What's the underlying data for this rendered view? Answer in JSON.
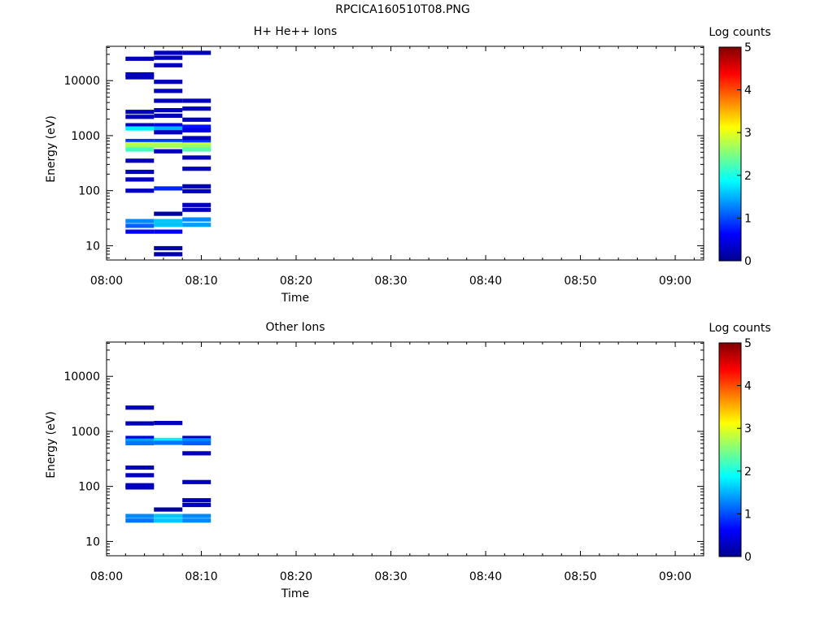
{
  "figure_title": "RPCICA160510T08.PNG",
  "chart_data": [
    {
      "type": "heatmap",
      "title": "H+ He++ Ions",
      "xlabel": "Time",
      "ylabel": "Energy (eV)",
      "colorbar_label": "Log counts",
      "y_scale": "log",
      "x_range": [
        "08:00",
        "09:03"
      ],
      "y_range": [
        5.5,
        42000
      ],
      "x_ticks": [
        "08:00",
        "08:10",
        "08:20",
        "08:30",
        "08:40",
        "08:50",
        "09:00"
      ],
      "y_ticks": [
        10,
        100,
        1000,
        10000
      ],
      "y_tick_labels": [
        "10",
        "100",
        "1000",
        "10000"
      ],
      "colorbar_range": [
        0,
        5
      ],
      "colorbar_ticks": [
        "0",
        "1",
        "2",
        "3",
        "4",
        "5"
      ],
      "columns": [
        {
          "t0": "08:02",
          "t1": "08:05",
          "bins": [
            {
              "e": 25000,
              "v": 0.3
            },
            {
              "e": 13000,
              "v": 0.3
            },
            {
              "e": 11500,
              "v": 0.3
            },
            {
              "e": 2700,
              "v": 0.3
            },
            {
              "e": 2200,
              "v": 0.3
            },
            {
              "e": 1550,
              "v": 0.3
            },
            {
              "e": 1350,
              "v": 1.8
            },
            {
              "e": 800,
              "v": 0.9
            },
            {
              "e": 700,
              "v": 2.9
            },
            {
              "e": 650,
              "v": 2.7
            },
            {
              "e": 560,
              "v": 2.2
            },
            {
              "e": 350,
              "v": 0.3
            },
            {
              "e": 220,
              "v": 0.3
            },
            {
              "e": 160,
              "v": 0.3
            },
            {
              "e": 100,
              "v": 0.3
            },
            {
              "e": 28,
              "v": 1.3
            },
            {
              "e": 23,
              "v": 1.1
            },
            {
              "e": 18,
              "v": 0.6
            }
          ]
        },
        {
          "t0": "08:05",
          "t1": "08:08",
          "bins": [
            {
              "e": 32000,
              "v": 0.3
            },
            {
              "e": 26000,
              "v": 0.3
            },
            {
              "e": 19000,
              "v": 0.3
            },
            {
              "e": 9500,
              "v": 0.3
            },
            {
              "e": 6500,
              "v": 0.3
            },
            {
              "e": 4300,
              "v": 0.3
            },
            {
              "e": 2900,
              "v": 0.3
            },
            {
              "e": 2300,
              "v": 0.3
            },
            {
              "e": 1550,
              "v": 0.5
            },
            {
              "e": 1350,
              "v": 1.5
            },
            {
              "e": 1150,
              "v": 0.3
            },
            {
              "e": 800,
              "v": 0.9
            },
            {
              "e": 700,
              "v": 2.8
            },
            {
              "e": 650,
              "v": 2.7
            },
            {
              "e": 520,
              "v": 0.3
            },
            {
              "e": 110,
              "v": 0.8
            },
            {
              "e": 38,
              "v": 0.2
            },
            {
              "e": 28,
              "v": 1.6
            },
            {
              "e": 24,
              "v": 1.6
            },
            {
              "e": 18,
              "v": 0.6
            },
            {
              "e": 9,
              "v": 0.2
            },
            {
              "e": 7,
              "v": 0.2
            }
          ]
        },
        {
          "t0": "08:08",
          "t1": "08:11",
          "bins": [
            {
              "e": 32000,
              "v": 0.3
            },
            {
              "e": 4300,
              "v": 0.3
            },
            {
              "e": 3100,
              "v": 0.3
            },
            {
              "e": 1950,
              "v": 0.3
            },
            {
              "e": 1450,
              "v": 0.7
            },
            {
              "e": 1250,
              "v": 0.5
            },
            {
              "e": 900,
              "v": 0.3
            },
            {
              "e": 760,
              "v": 0.9
            },
            {
              "e": 690,
              "v": 2.9
            },
            {
              "e": 630,
              "v": 2.6
            },
            {
              "e": 560,
              "v": 2.3
            },
            {
              "e": 400,
              "v": 0.3
            },
            {
              "e": 250,
              "v": 0.3
            },
            {
              "e": 120,
              "v": 0.3
            },
            {
              "e": 98,
              "v": 0.3
            },
            {
              "e": 55,
              "v": 0.3
            },
            {
              "e": 45,
              "v": 0.3
            },
            {
              "e": 30,
              "v": 1.3
            },
            {
              "e": 24,
              "v": 1.4
            }
          ]
        }
      ]
    },
    {
      "type": "heatmap",
      "title": "Other Ions",
      "xlabel": "Time",
      "ylabel": "Energy (eV)",
      "colorbar_label": "Log counts",
      "y_scale": "log",
      "x_range": [
        "08:00",
        "09:03"
      ],
      "y_range": [
        5.5,
        42000
      ],
      "x_ticks": [
        "08:00",
        "08:10",
        "08:20",
        "08:30",
        "08:40",
        "08:50",
        "09:00"
      ],
      "y_ticks": [
        10,
        100,
        1000,
        10000
      ],
      "y_tick_labels": [
        "10",
        "100",
        "1000",
        "10000"
      ],
      "colorbar_range": [
        0,
        5
      ],
      "colorbar_ticks": [
        "0",
        "1",
        "2",
        "3",
        "4",
        "5"
      ],
      "columns": [
        {
          "t0": "08:02",
          "t1": "08:05",
          "bins": [
            {
              "e": 2700,
              "v": 0.3
            },
            {
              "e": 1400,
              "v": 0.3
            },
            {
              "e": 760,
              "v": 0.5
            },
            {
              "e": 680,
              "v": 1.4
            },
            {
              "e": 610,
              "v": 1.2
            },
            {
              "e": 220,
              "v": 0.3
            },
            {
              "e": 160,
              "v": 0.3
            },
            {
              "e": 105,
              "v": 0.3
            },
            {
              "e": 96,
              "v": 0.3
            },
            {
              "e": 29,
              "v": 1.3
            },
            {
              "e": 24,
              "v": 1.2
            }
          ]
        },
        {
          "t0": "08:05",
          "t1": "08:08",
          "bins": [
            {
              "e": 1420,
              "v": 0.3
            },
            {
              "e": 700,
              "v": 1.8
            },
            {
              "e": 620,
              "v": 1.2
            },
            {
              "e": 38,
              "v": 0.2
            },
            {
              "e": 29,
              "v": 1.6
            },
            {
              "e": 24,
              "v": 1.6
            }
          ]
        },
        {
          "t0": "08:08",
          "t1": "08:11",
          "bins": [
            {
              "e": 760,
              "v": 0.3
            },
            {
              "e": 690,
              "v": 1.3
            },
            {
              "e": 610,
              "v": 1.1
            },
            {
              "e": 400,
              "v": 0.3
            },
            {
              "e": 120,
              "v": 0.3
            },
            {
              "e": 56,
              "v": 0.3
            },
            {
              "e": 46,
              "v": 0.3
            },
            {
              "e": 29,
              "v": 1.3
            },
            {
              "e": 24,
              "v": 1.3
            }
          ]
        }
      ]
    }
  ]
}
